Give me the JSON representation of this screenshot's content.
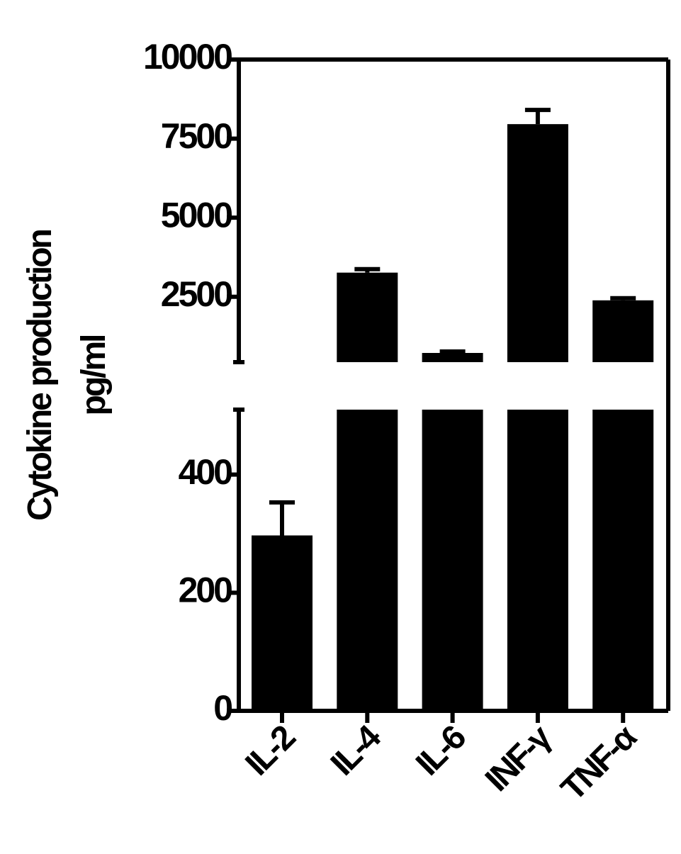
{
  "chart_data": {
    "type": "bar",
    "ylabel": [
      "Cytokine production",
      "pg/ml"
    ],
    "categories": [
      "IL-2",
      "IL-4",
      "IL-6",
      "INF-γ",
      "TNF-α"
    ],
    "values": [
      297,
      3264,
      725,
      7958,
      2388
    ],
    "errors": [
      56,
      110,
      45,
      450,
      67
    ],
    "color": "#000000",
    "y_segments": [
      {
        "ylim": [
          0,
          510
        ],
        "yticks": [
          0,
          200,
          400
        ]
      },
      {
        "ylim": [
          434,
          10000
        ],
        "yticks": [
          2500,
          5000,
          7500,
          10000
        ]
      }
    ]
  }
}
